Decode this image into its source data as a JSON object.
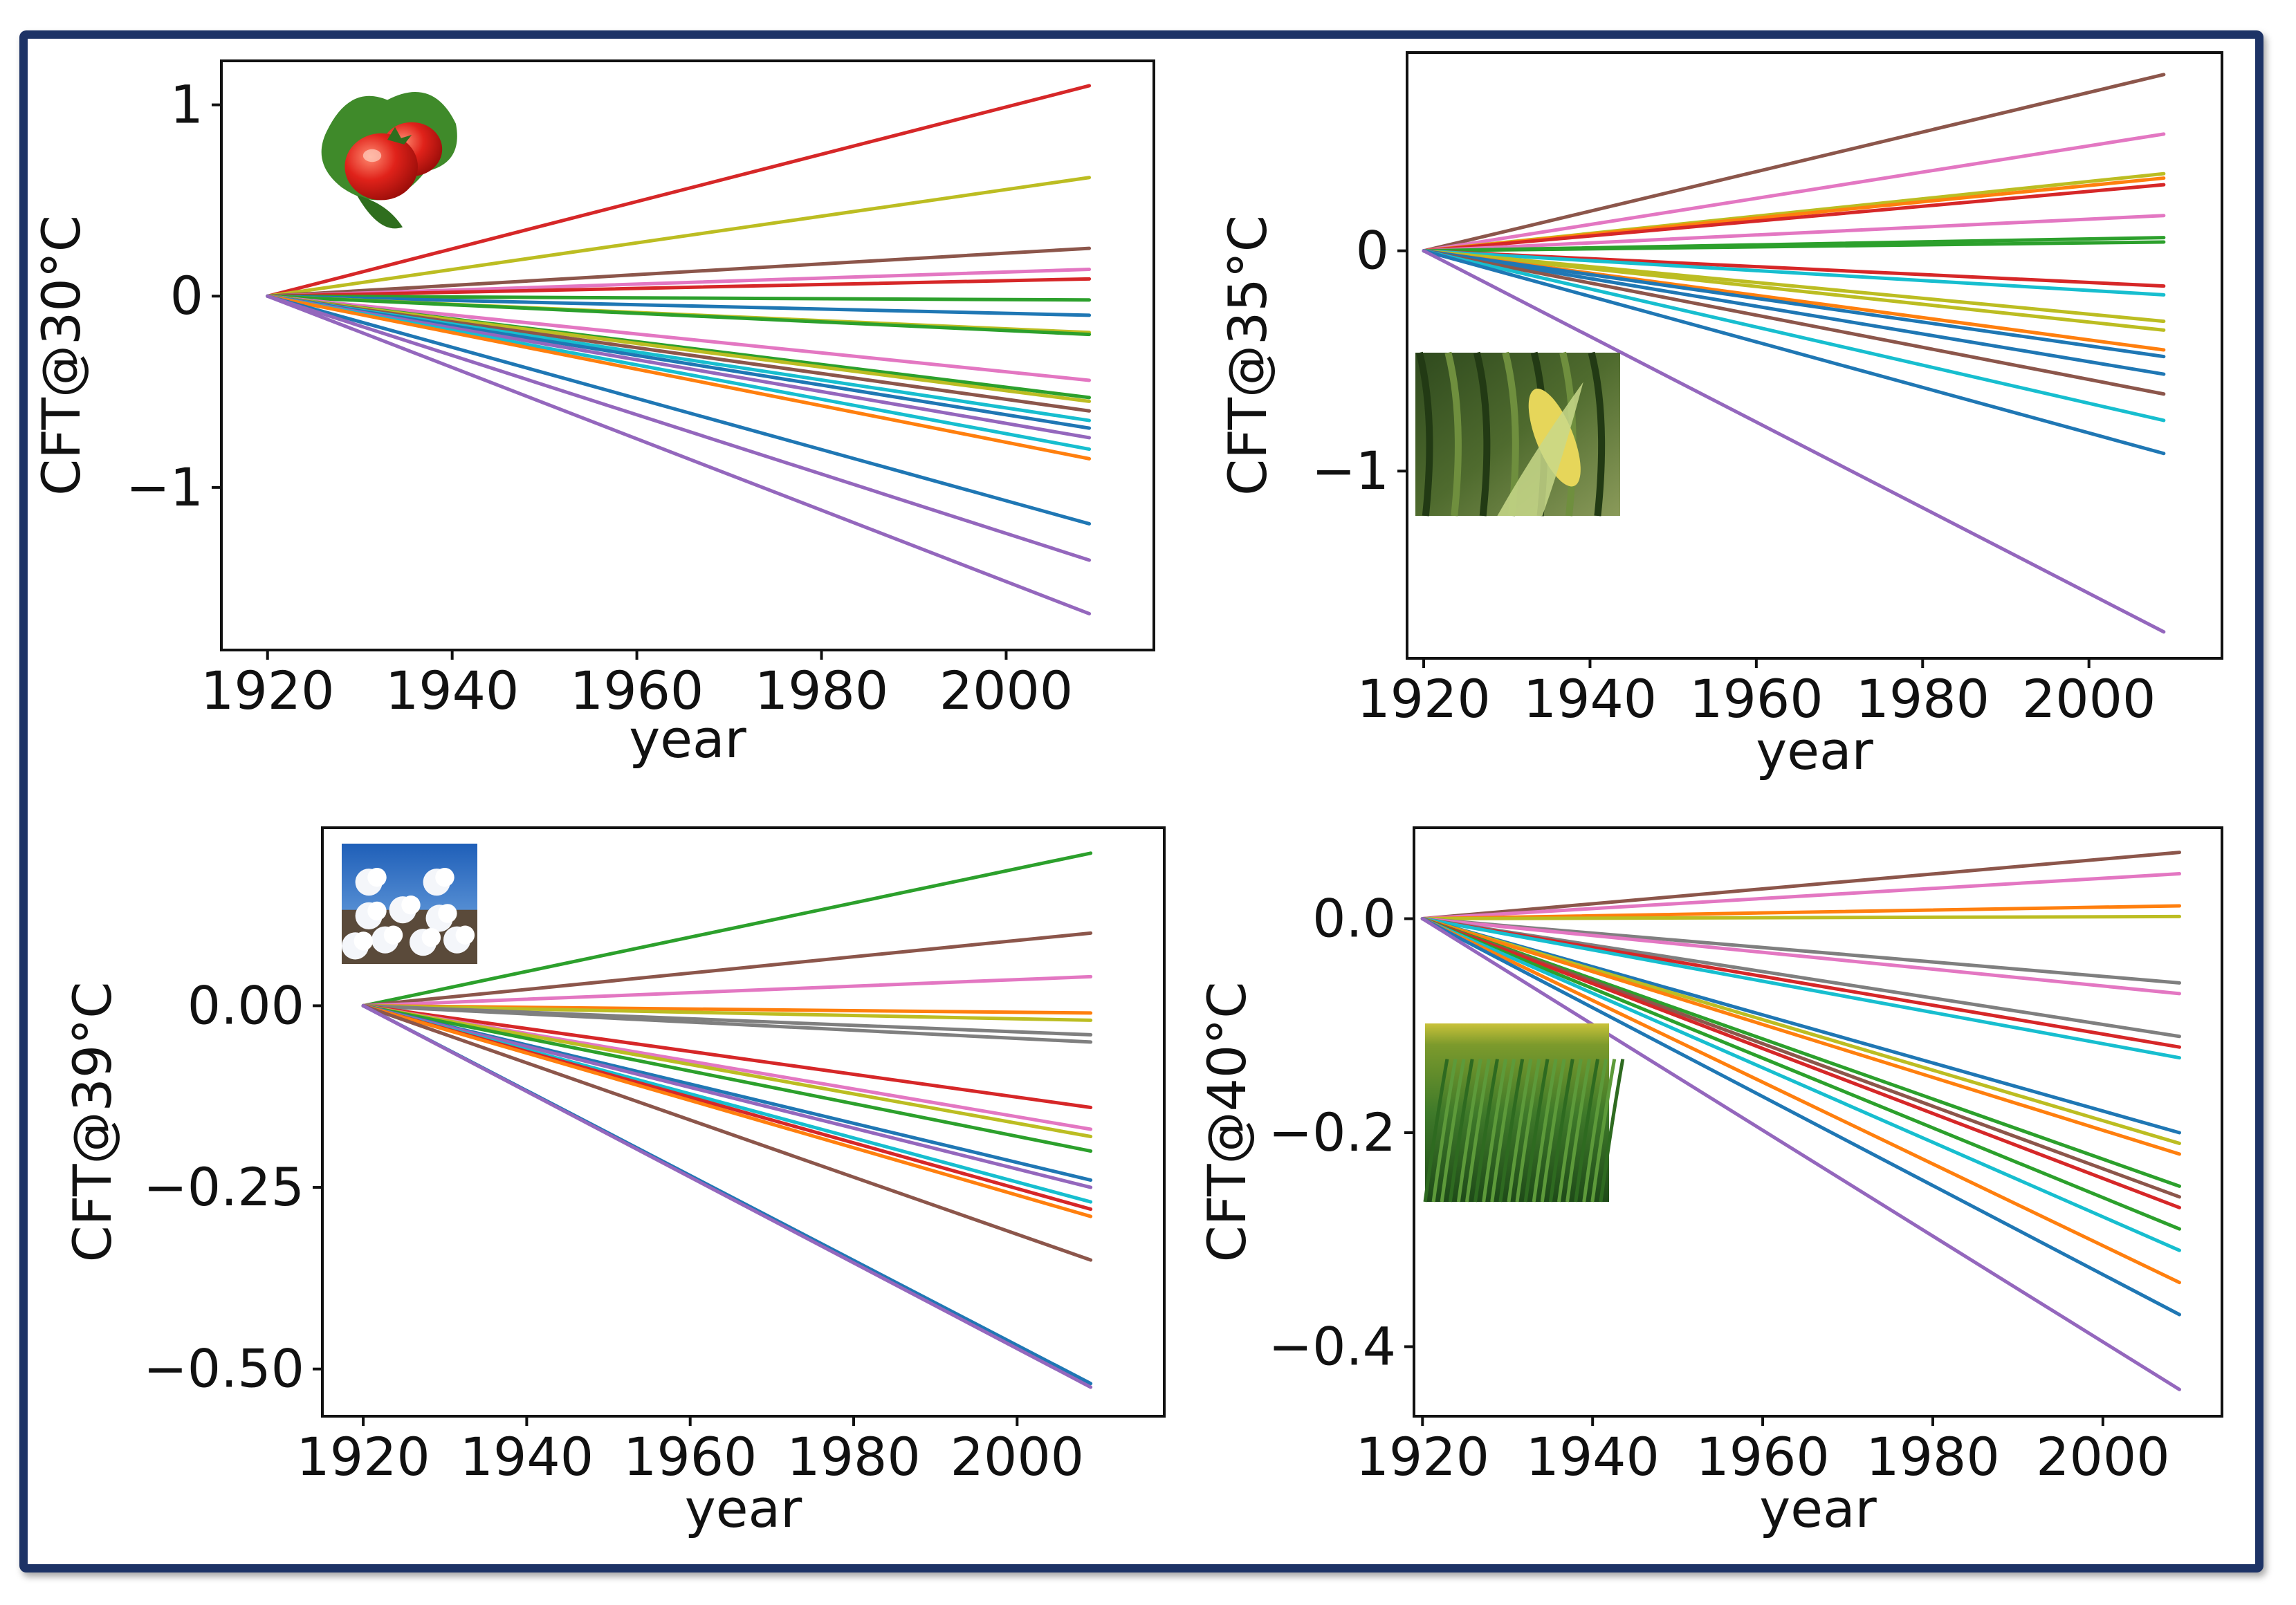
{
  "figure": {
    "border_color": "#1d3366"
  },
  "chart_data": [
    {
      "id": "tomato",
      "type": "line",
      "icon": "tomato-photo",
      "xlabel": "year",
      "ylabel": "CFT@30°C",
      "x": [
        1920,
        2009
      ],
      "xlim": [
        1915,
        2016
      ],
      "ylim": [
        -1.85,
        1.23
      ],
      "xticks": [
        1920,
        1940,
        1960,
        1980,
        2000
      ],
      "xtick_labels": [
        "1920",
        "1940",
        "1960",
        "1980",
        "2000"
      ],
      "yticks": [
        1,
        0,
        -1
      ],
      "ytick_labels": [
        "1",
        "0",
        "−1"
      ],
      "series": [
        {
          "name": "s1",
          "color": "#d62728",
          "values": [
            0,
            1.1
          ]
        },
        {
          "name": "s2",
          "color": "#bcbd22",
          "values": [
            0,
            0.62
          ]
        },
        {
          "name": "s3",
          "color": "#8c564b",
          "values": [
            0,
            0.25
          ]
        },
        {
          "name": "s4",
          "color": "#e377c2",
          "values": [
            0,
            0.14
          ]
        },
        {
          "name": "s5",
          "color": "#d62728",
          "values": [
            0,
            0.09
          ]
        },
        {
          "name": "s6",
          "color": "#2ca02c",
          "values": [
            0,
            -0.02
          ]
        },
        {
          "name": "s7",
          "color": "#1f77b4",
          "values": [
            0,
            -0.1
          ]
        },
        {
          "name": "s8",
          "color": "#bcbd22",
          "values": [
            0,
            -0.19
          ]
        },
        {
          "name": "s9",
          "color": "#2ca02c",
          "values": [
            0,
            -0.2
          ]
        },
        {
          "name": "s10",
          "color": "#e377c2",
          "values": [
            0,
            -0.44
          ]
        },
        {
          "name": "s11",
          "color": "#2ca02c",
          "values": [
            0,
            -0.53
          ]
        },
        {
          "name": "s12",
          "color": "#bcbd22",
          "values": [
            0,
            -0.55
          ]
        },
        {
          "name": "s13",
          "color": "#8c564b",
          "values": [
            0,
            -0.6
          ]
        },
        {
          "name": "s14",
          "color": "#17becf",
          "values": [
            0,
            -0.65
          ]
        },
        {
          "name": "s15",
          "color": "#1f77b4",
          "values": [
            0,
            -0.69
          ]
        },
        {
          "name": "s16",
          "color": "#9467bd",
          "values": [
            0,
            -0.74
          ]
        },
        {
          "name": "s17",
          "color": "#17becf",
          "values": [
            0,
            -0.8
          ]
        },
        {
          "name": "s18",
          "color": "#ff7f0e",
          "values": [
            0,
            -0.85
          ]
        },
        {
          "name": "s19",
          "color": "#1f77b4",
          "values": [
            0,
            -1.19
          ]
        },
        {
          "name": "s20",
          "color": "#9467bd",
          "values": [
            0,
            -1.38
          ]
        },
        {
          "name": "s21",
          "color": "#9467bd",
          "values": [
            0,
            -1.66
          ]
        }
      ]
    },
    {
      "id": "corn",
      "type": "line",
      "icon": "corn-photo",
      "xlabel": "year",
      "ylabel": "CFT@35°C",
      "x": [
        1920,
        2009
      ],
      "xlim": [
        1918,
        2016
      ],
      "ylim": [
        -1.85,
        0.9
      ],
      "xticks": [
        1920,
        1940,
        1960,
        1980,
        2000
      ],
      "xtick_labels": [
        "1920",
        "1940",
        "1960",
        "1980",
        "2000"
      ],
      "yticks": [
        0,
        -1
      ],
      "ytick_labels": [
        "0",
        "−1"
      ],
      "series": [
        {
          "name": "s1",
          "color": "#8c564b",
          "values": [
            0,
            0.8
          ]
        },
        {
          "name": "s2",
          "color": "#e377c2",
          "values": [
            0,
            0.53
          ]
        },
        {
          "name": "s3",
          "color": "#bcbd22",
          "values": [
            0,
            0.35
          ]
        },
        {
          "name": "s4",
          "color": "#ff7f0e",
          "values": [
            0,
            0.33
          ]
        },
        {
          "name": "s5",
          "color": "#d62728",
          "values": [
            0,
            0.3
          ]
        },
        {
          "name": "s6",
          "color": "#e377c2",
          "values": [
            0,
            0.16
          ]
        },
        {
          "name": "s7",
          "color": "#2ca02c",
          "values": [
            0,
            0.06
          ]
        },
        {
          "name": "s8",
          "color": "#2ca02c",
          "values": [
            0,
            0.04
          ]
        },
        {
          "name": "s9",
          "color": "#d62728",
          "values": [
            0,
            -0.16
          ]
        },
        {
          "name": "s10",
          "color": "#17becf",
          "values": [
            0,
            -0.2
          ]
        },
        {
          "name": "s11",
          "color": "#bcbd22",
          "values": [
            0,
            -0.32
          ]
        },
        {
          "name": "s12",
          "color": "#bcbd22",
          "values": [
            0,
            -0.36
          ]
        },
        {
          "name": "s13",
          "color": "#ff7f0e",
          "values": [
            0,
            -0.45
          ]
        },
        {
          "name": "s14",
          "color": "#1f77b4",
          "values": [
            0,
            -0.48
          ]
        },
        {
          "name": "s15",
          "color": "#1f77b4",
          "values": [
            0,
            -0.56
          ]
        },
        {
          "name": "s16",
          "color": "#8c564b",
          "values": [
            0,
            -0.65
          ]
        },
        {
          "name": "s17",
          "color": "#17becf",
          "values": [
            0,
            -0.77
          ]
        },
        {
          "name": "s18",
          "color": "#1f77b4",
          "values": [
            0,
            -0.92
          ]
        },
        {
          "name": "s19",
          "color": "#9467bd",
          "values": [
            0,
            -1.73
          ]
        }
      ]
    },
    {
      "id": "cotton",
      "type": "line",
      "icon": "cotton-photo",
      "xlabel": "year",
      "ylabel": "CFT@39°C",
      "x": [
        1920,
        2009
      ],
      "xlim": [
        1915,
        2018
      ],
      "ylim": [
        -0.565,
        0.245
      ],
      "xticks": [
        1920,
        1940,
        1960,
        1980,
        2000
      ],
      "xtick_labels": [
        "1920",
        "1940",
        "1960",
        "1980",
        "2000"
      ],
      "yticks": [
        0.0,
        -0.25,
        -0.5
      ],
      "ytick_labels": [
        "0.00",
        "−0.25",
        "−0.50"
      ],
      "series": [
        {
          "name": "s1",
          "color": "#2ca02c",
          "values": [
            0,
            0.21
          ]
        },
        {
          "name": "s2",
          "color": "#8c564b",
          "values": [
            0,
            0.1
          ]
        },
        {
          "name": "s3",
          "color": "#e377c2",
          "values": [
            0,
            0.04
          ]
        },
        {
          "name": "s4",
          "color": "#ff7f0e",
          "values": [
            0,
            -0.01
          ]
        },
        {
          "name": "s5",
          "color": "#bcbd22",
          "values": [
            0,
            -0.02
          ]
        },
        {
          "name": "s6",
          "color": "#7f7f7f",
          "values": [
            0,
            -0.04
          ]
        },
        {
          "name": "s7",
          "color": "#7f7f7f",
          "values": [
            0,
            -0.05
          ]
        },
        {
          "name": "s8",
          "color": "#d62728",
          "values": [
            0,
            -0.14
          ]
        },
        {
          "name": "s9",
          "color": "#e377c2",
          "values": [
            0,
            -0.17
          ]
        },
        {
          "name": "s10",
          "color": "#bcbd22",
          "values": [
            0,
            -0.18
          ]
        },
        {
          "name": "s11",
          "color": "#2ca02c",
          "values": [
            0,
            -0.2
          ]
        },
        {
          "name": "s12",
          "color": "#1f77b4",
          "values": [
            0,
            -0.24
          ]
        },
        {
          "name": "s13",
          "color": "#9467bd",
          "values": [
            0,
            -0.25
          ]
        },
        {
          "name": "s14",
          "color": "#17becf",
          "values": [
            0,
            -0.27
          ]
        },
        {
          "name": "s15",
          "color": "#d62728",
          "values": [
            0,
            -0.28
          ]
        },
        {
          "name": "s16",
          "color": "#ff7f0e",
          "values": [
            0,
            -0.29
          ]
        },
        {
          "name": "s17",
          "color": "#8c564b",
          "values": [
            0,
            -0.35
          ]
        },
        {
          "name": "s18",
          "color": "#1f77b4",
          "values": [
            0,
            -0.52
          ]
        },
        {
          "name": "s19",
          "color": "#9467bd",
          "values": [
            0,
            -0.525
          ]
        }
      ]
    },
    {
      "id": "wheat",
      "type": "line",
      "icon": "wheat-photo",
      "xlabel": "year",
      "ylabel": "CFT@40°C",
      "x": [
        1920,
        2009
      ],
      "xlim": [
        1919,
        2014
      ],
      "ylim": [
        -0.465,
        0.085
      ],
      "xticks": [
        1920,
        1940,
        1960,
        1980,
        2000
      ],
      "xtick_labels": [
        "1920",
        "1940",
        "1960",
        "1980",
        "2000"
      ],
      "yticks": [
        0.0,
        -0.2,
        -0.4
      ],
      "ytick_labels": [
        "0.0",
        "−0.2",
        "−0.4"
      ],
      "series": [
        {
          "name": "s1",
          "color": "#8c564b",
          "values": [
            0,
            0.062
          ]
        },
        {
          "name": "s2",
          "color": "#e377c2",
          "values": [
            0,
            0.042
          ]
        },
        {
          "name": "s3",
          "color": "#ff7f0e",
          "values": [
            0,
            0.012
          ]
        },
        {
          "name": "s4",
          "color": "#bcbd22",
          "values": [
            0,
            0.002
          ]
        },
        {
          "name": "s5",
          "color": "#7f7f7f",
          "values": [
            0,
            -0.06
          ]
        },
        {
          "name": "s6",
          "color": "#e377c2",
          "values": [
            0,
            -0.07
          ]
        },
        {
          "name": "s7",
          "color": "#7f7f7f",
          "values": [
            0,
            -0.11
          ]
        },
        {
          "name": "s8",
          "color": "#d62728",
          "values": [
            0,
            -0.12
          ]
        },
        {
          "name": "s9",
          "color": "#17becf",
          "values": [
            0,
            -0.13
          ]
        },
        {
          "name": "s10",
          "color": "#1f77b4",
          "values": [
            0,
            -0.2
          ]
        },
        {
          "name": "s11",
          "color": "#bcbd22",
          "values": [
            0,
            -0.21
          ]
        },
        {
          "name": "s12",
          "color": "#ff7f0e",
          "values": [
            0,
            -0.22
          ]
        },
        {
          "name": "s13",
          "color": "#2ca02c",
          "values": [
            0,
            -0.25
          ]
        },
        {
          "name": "s14",
          "color": "#8c564b",
          "values": [
            0,
            -0.26
          ]
        },
        {
          "name": "s15",
          "color": "#d62728",
          "values": [
            0,
            -0.27
          ]
        },
        {
          "name": "s16",
          "color": "#2ca02c",
          "values": [
            0,
            -0.29
          ]
        },
        {
          "name": "s17",
          "color": "#17becf",
          "values": [
            0,
            -0.31
          ]
        },
        {
          "name": "s18",
          "color": "#ff7f0e",
          "values": [
            0,
            -0.34
          ]
        },
        {
          "name": "s19",
          "color": "#1f77b4",
          "values": [
            0,
            -0.37
          ]
        },
        {
          "name": "s20",
          "color": "#9467bd",
          "values": [
            0,
            -0.44
          ]
        }
      ]
    }
  ]
}
